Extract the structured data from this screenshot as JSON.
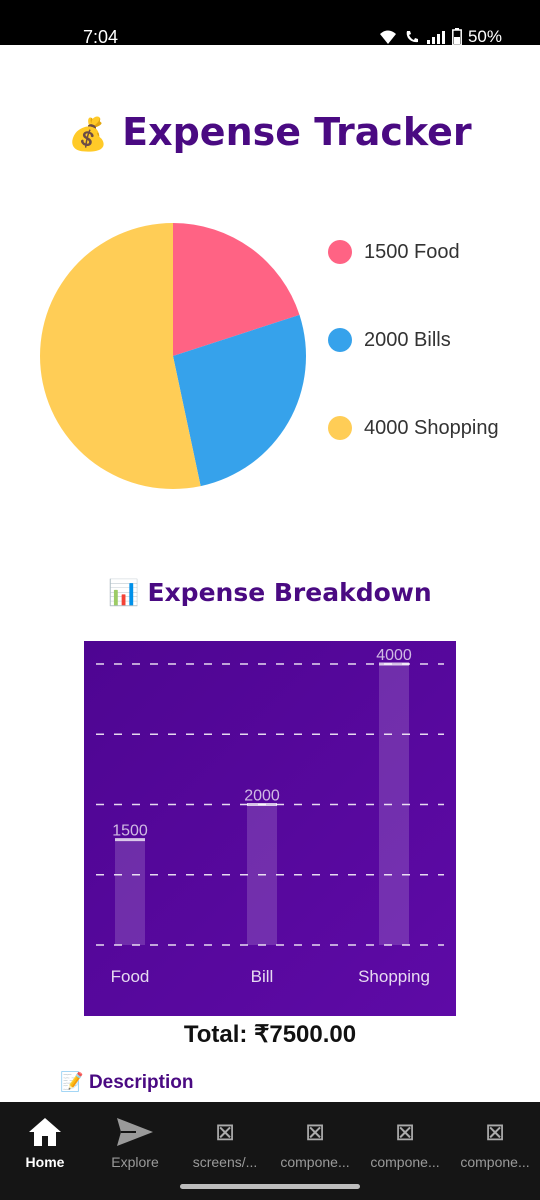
{
  "status_bar": {
    "time": "7:04",
    "battery": "50%"
  },
  "header": {
    "emoji": "💰",
    "title": "Expense Tracker"
  },
  "pie": {
    "legend": [
      {
        "label": "1500 Food",
        "color": "#ff6384"
      },
      {
        "label": "2000 Bills",
        "color": "#36a2eb"
      },
      {
        "label": "4000 Shopping",
        "color": "#ffcd56"
      }
    ]
  },
  "breakdown": {
    "emoji": "📊",
    "title": "Expense Breakdown"
  },
  "chart_data": {
    "type": "bar",
    "categories": [
      "Food",
      "Bill",
      "Shopping"
    ],
    "values": [
      1500,
      2000,
      4000
    ],
    "ylim": [
      0,
      4000
    ],
    "grid": true
  },
  "total": "Total: ₹7500.00",
  "description": {
    "emoji": "📝",
    "label": "Description"
  },
  "bottom_nav": [
    {
      "label": "Home",
      "icon": "home-icon",
      "active": true
    },
    {
      "label": "Explore",
      "icon": "send-icon",
      "active": false
    },
    {
      "label": "screens/...",
      "icon": "placeholder-icon",
      "active": false
    },
    {
      "label": "compone...",
      "icon": "placeholder-icon",
      "active": false
    },
    {
      "label": "compone...",
      "icon": "placeholder-icon",
      "active": false
    },
    {
      "label": "compone...",
      "icon": "placeholder-icon",
      "active": false
    }
  ]
}
